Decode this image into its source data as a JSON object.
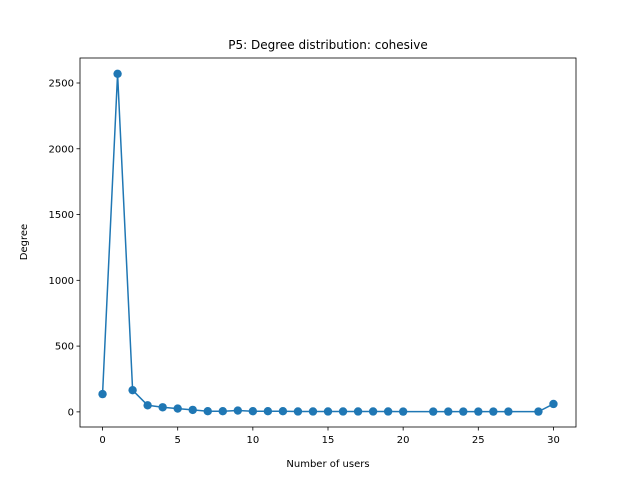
{
  "chart_data": {
    "type": "line",
    "title": "P5: Degree distribution: cohesive",
    "xlabel": "Number of users",
    "ylabel": "Degree",
    "xlim": [
      -1.5,
      31.5
    ],
    "ylim": [
      -115,
      2690
    ],
    "xticks": [
      0,
      5,
      10,
      15,
      20,
      25,
      30
    ],
    "yticks": [
      0,
      500,
      1000,
      1500,
      2000,
      2500
    ],
    "grid": false,
    "series": [
      {
        "color": "#1f77b4",
        "marker": "circle",
        "x": [
          0,
          1,
          2,
          3,
          4,
          5,
          6,
          7,
          8,
          9,
          10,
          11,
          12,
          13,
          14,
          15,
          16,
          17,
          18,
          19,
          20,
          22,
          23,
          24,
          25,
          26,
          27,
          29,
          30
        ],
        "y": [
          135,
          2570,
          165,
          50,
          35,
          25,
          15,
          5,
          5,
          10,
          5,
          5,
          5,
          3,
          3,
          3,
          3,
          3,
          3,
          3,
          2,
          2,
          2,
          2,
          2,
          2,
          2,
          2,
          60
        ]
      }
    ]
  }
}
